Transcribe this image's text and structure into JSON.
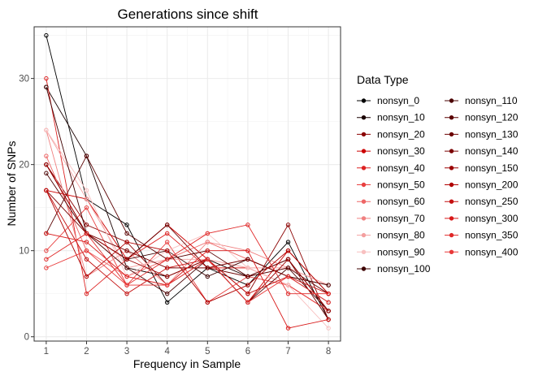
{
  "chart_data": {
    "type": "line",
    "title": "Generations since shift",
    "xlabel": "Frequency in Sample",
    "ylabel": "Number of SNPs",
    "x": [
      1,
      2,
      3,
      4,
      5,
      6,
      7,
      8
    ],
    "xlim": [
      0.7,
      8.3
    ],
    "ylim": [
      -0.5,
      36
    ],
    "xticks": [
      "1",
      "2",
      "3",
      "4",
      "5",
      "6",
      "7",
      "8"
    ],
    "yticks": [
      "0",
      "10",
      "20",
      "30"
    ],
    "ytick_values": [
      0,
      10,
      20,
      30
    ],
    "grid": true,
    "legend": {
      "title": "Data Type",
      "placement": "right",
      "columns": 2
    },
    "series": [
      {
        "name": "nonsyn_0",
        "color": "#000000",
        "values": [
          35,
          16,
          13,
          4,
          8,
          6,
          11,
          2
        ]
      },
      {
        "name": "nonsyn_10",
        "color": "#1a0000",
        "values": [
          29,
          21,
          8,
          7,
          9,
          7,
          9,
          3
        ]
      },
      {
        "name": "nonsyn_20",
        "color": "#8b0000",
        "values": [
          20,
          13,
          11,
          6,
          9,
          5,
          13,
          2
        ]
      },
      {
        "name": "nonsyn_30",
        "color": "#cc0000",
        "values": [
          17,
          16,
          9,
          13,
          9,
          4,
          10,
          5
        ]
      },
      {
        "name": "nonsyn_40",
        "color": "#dd2222",
        "values": [
          30,
          5,
          9,
          12,
          8,
          8,
          6,
          3
        ]
      },
      {
        "name": "nonsyn_50",
        "color": "#e84040",
        "values": [
          10,
          15,
          6,
          11,
          4,
          7,
          6,
          3
        ]
      },
      {
        "name": "nonsyn_60",
        "color": "#ee6666",
        "values": [
          21,
          10,
          7,
          9,
          11,
          9,
          7,
          6
        ]
      },
      {
        "name": "nonsyn_70",
        "color": "#f08080",
        "values": [
          24,
          7,
          10,
          6,
          11,
          10,
          8,
          6
        ]
      },
      {
        "name": "nonsyn_80",
        "color": "#f4a0a0",
        "values": [
          24,
          16,
          8,
          9,
          9,
          8,
          8,
          6
        ]
      },
      {
        "name": "nonsyn_90",
        "color": "#f8c0c0",
        "values": [
          24,
          17,
          7,
          10,
          12,
          8,
          6,
          1
        ]
      },
      {
        "name": "nonsyn_100",
        "color": "#3d0000",
        "values": [
          29,
          12,
          9,
          10,
          7,
          9,
          7,
          6
        ]
      },
      {
        "name": "nonsyn_110",
        "color": "#4a0000",
        "values": [
          19,
          12,
          8,
          5,
          9,
          4,
          8,
          3
        ]
      },
      {
        "name": "nonsyn_120",
        "color": "#5a0000",
        "values": [
          12,
          21,
          12,
          9,
          10,
          7,
          8,
          5
        ]
      },
      {
        "name": "nonsyn_130",
        "color": "#6b0000",
        "values": [
          20,
          12,
          9,
          13,
          8,
          7,
          9,
          2
        ]
      },
      {
        "name": "nonsyn_140",
        "color": "#7a0000",
        "values": [
          17,
          12,
          10,
          8,
          8,
          9,
          7,
          4
        ]
      },
      {
        "name": "nonsyn_150",
        "color": "#9a0000",
        "values": [
          20,
          12,
          9,
          7,
          9,
          4,
          9,
          3
        ]
      },
      {
        "name": "nonsyn_200",
        "color": "#b00000",
        "values": [
          17,
          7,
          11,
          10,
          4,
          6,
          10,
          5
        ]
      },
      {
        "name": "nonsyn_250",
        "color": "#c41010",
        "values": [
          17,
          9,
          5,
          8,
          9,
          5,
          7,
          5
        ]
      },
      {
        "name": "nonsyn_300",
        "color": "#d81818",
        "values": [
          12,
          11,
          7,
          6,
          10,
          10,
          1,
          2
        ]
      },
      {
        "name": "nonsyn_350",
        "color": "#e02828",
        "values": [
          9,
          12,
          6,
          9,
          12,
          13,
          5,
          5
        ]
      },
      {
        "name": "nonsyn_400",
        "color": "#e83838",
        "values": [
          8,
          10,
          6,
          6,
          9,
          4,
          7,
          4
        ]
      }
    ]
  }
}
